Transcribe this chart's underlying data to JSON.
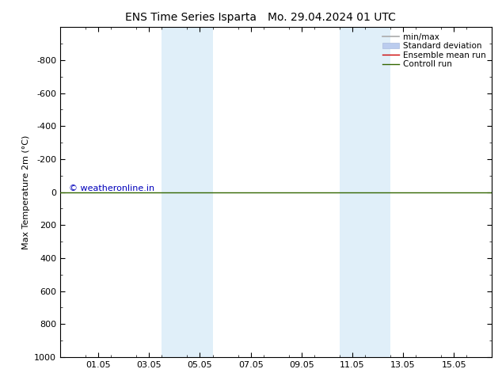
{
  "title_left": "ENS Time Series Isparta",
  "title_right": "Mo. 29.04.2024 01 UTC",
  "ylabel": "Max Temperature 2m (°C)",
  "ylim_top": -1000,
  "ylim_bottom": 1000,
  "yticks": [
    -800,
    -600,
    -400,
    -200,
    0,
    200,
    400,
    600,
    800,
    1000
  ],
  "xlim_start": -0.5,
  "xlim_end": 16.5,
  "xtick_positions": [
    1,
    3,
    5,
    7,
    9,
    11,
    13,
    15
  ],
  "xtick_labels": [
    "01.05",
    "03.05",
    "05.05",
    "07.05",
    "09.05",
    "11.05",
    "13.05",
    "15.05"
  ],
  "shaded_bands": [
    [
      3.5,
      4.5
    ],
    [
      4.5,
      5.5
    ],
    [
      10.5,
      11.5
    ],
    [
      11.5,
      12.5
    ]
  ],
  "shade_colors": [
    "#ccddf0",
    "#ddeeff",
    "#ccddf0",
    "#ddeeff"
  ],
  "control_run_y": 0,
  "control_run_color": "#336600",
  "ensemble_mean_color": "#cc0000",
  "minmax_color": "#aaaaaa",
  "std_dev_color": "#bbccdd",
  "watermark_text": "© weatheronline.in",
  "watermark_color": "#0000bb",
  "background_color": "#ffffff",
  "plot_bg_color": "#ffffff",
  "title_fontsize": 10,
  "tick_fontsize": 8,
  "label_fontsize": 8,
  "legend_fontsize": 7.5
}
